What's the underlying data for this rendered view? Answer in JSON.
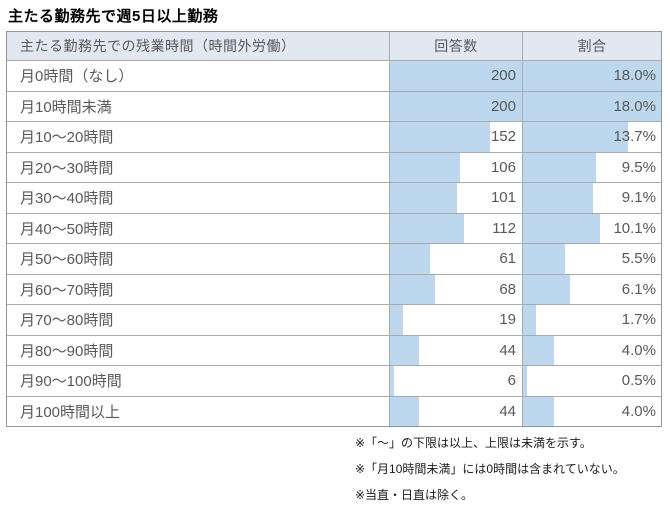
{
  "title": "主たる勤務先で週5日以上勤務",
  "colors": {
    "bar": "#BDD7EE",
    "header_bg": "#E2E8F2",
    "border_outer": "#8E96A1",
    "border_inner": "#ABABAB",
    "cell_text": "#595959",
    "title_text": "#000000",
    "note_text": "#1A1A1A"
  },
  "table": {
    "headers": [
      "主たる勤務先での残業時間（時間外労働）",
      "回答数",
      "割合"
    ],
    "rows": [
      {
        "label": "月0時間（なし）",
        "count": 200,
        "ratio": "18.0%",
        "ratio_value": 18.0
      },
      {
        "label": "月10時間未満",
        "count": 200,
        "ratio": "18.0%",
        "ratio_value": 18.0
      },
      {
        "label": "月10～20時間",
        "count": 152,
        "ratio": "13.7%",
        "ratio_value": 13.7
      },
      {
        "label": "月20～30時間",
        "count": 106,
        "ratio": "9.5%",
        "ratio_value": 9.5
      },
      {
        "label": "月30～40時間",
        "count": 101,
        "ratio": "9.1%",
        "ratio_value": 9.1
      },
      {
        "label": "月40～50時間",
        "count": 112,
        "ratio": "10.1%",
        "ratio_value": 10.1
      },
      {
        "label": "月50～60時間",
        "count": 61,
        "ratio": "5.5%",
        "ratio_value": 5.5
      },
      {
        "label": "月60～70時間",
        "count": 68,
        "ratio": "6.1%",
        "ratio_value": 6.1
      },
      {
        "label": "月70～80時間",
        "count": 19,
        "ratio": "1.7%",
        "ratio_value": 1.7
      },
      {
        "label": "月80～90時間",
        "count": 44,
        "ratio": "4.0%",
        "ratio_value": 4.0
      },
      {
        "label": "月90～100時間",
        "count": 6,
        "ratio": "0.5%",
        "ratio_value": 0.5
      },
      {
        "label": "月100時間以上",
        "count": 44,
        "ratio": "4.0%",
        "ratio_value": 4.0
      }
    ]
  },
  "notes": [
    "※「～」の下限は以上、上限は未満を示す。",
    "※「月10時間未満」には0時間は含まれていない。",
    "※当直・日直は除く。"
  ],
  "chart_data": {
    "type": "table",
    "title": "主たる勤務先で週5日以上勤務",
    "columns": [
      "主たる勤務先での残業時間（時間外労働）",
      "回答数",
      "割合"
    ],
    "categories": [
      "月0時間（なし）",
      "月10時間未満",
      "月10～20時間",
      "月20～30時間",
      "月30～40時間",
      "月40～50時間",
      "月50～60時間",
      "月60～70時間",
      "月70～80時間",
      "月80～90時間",
      "月90～100時間",
      "月100時間以上"
    ],
    "series": [
      {
        "name": "回答数",
        "values": [
          200,
          200,
          152,
          106,
          101,
          112,
          61,
          68,
          19,
          44,
          6,
          44
        ]
      },
      {
        "name": "割合(%)",
        "values": [
          18.0,
          18.0,
          13.7,
          9.5,
          9.1,
          10.1,
          5.5,
          6.1,
          1.7,
          4.0,
          0.5,
          4.0
        ]
      }
    ],
    "bar_style": "in-cell horizontal data bars, fill proportional to value, max value fills cell",
    "bar_scale_max": {
      "回答数": 200,
      "割合(%)": 18.0
    },
    "legend": "off",
    "grid": "table borders",
    "notes": [
      "※「～」の下限は以上、上限は未満を示す。",
      "※「月10時間未満」には0時間は含まれていない。",
      "※当直・日直は除く。"
    ]
  }
}
